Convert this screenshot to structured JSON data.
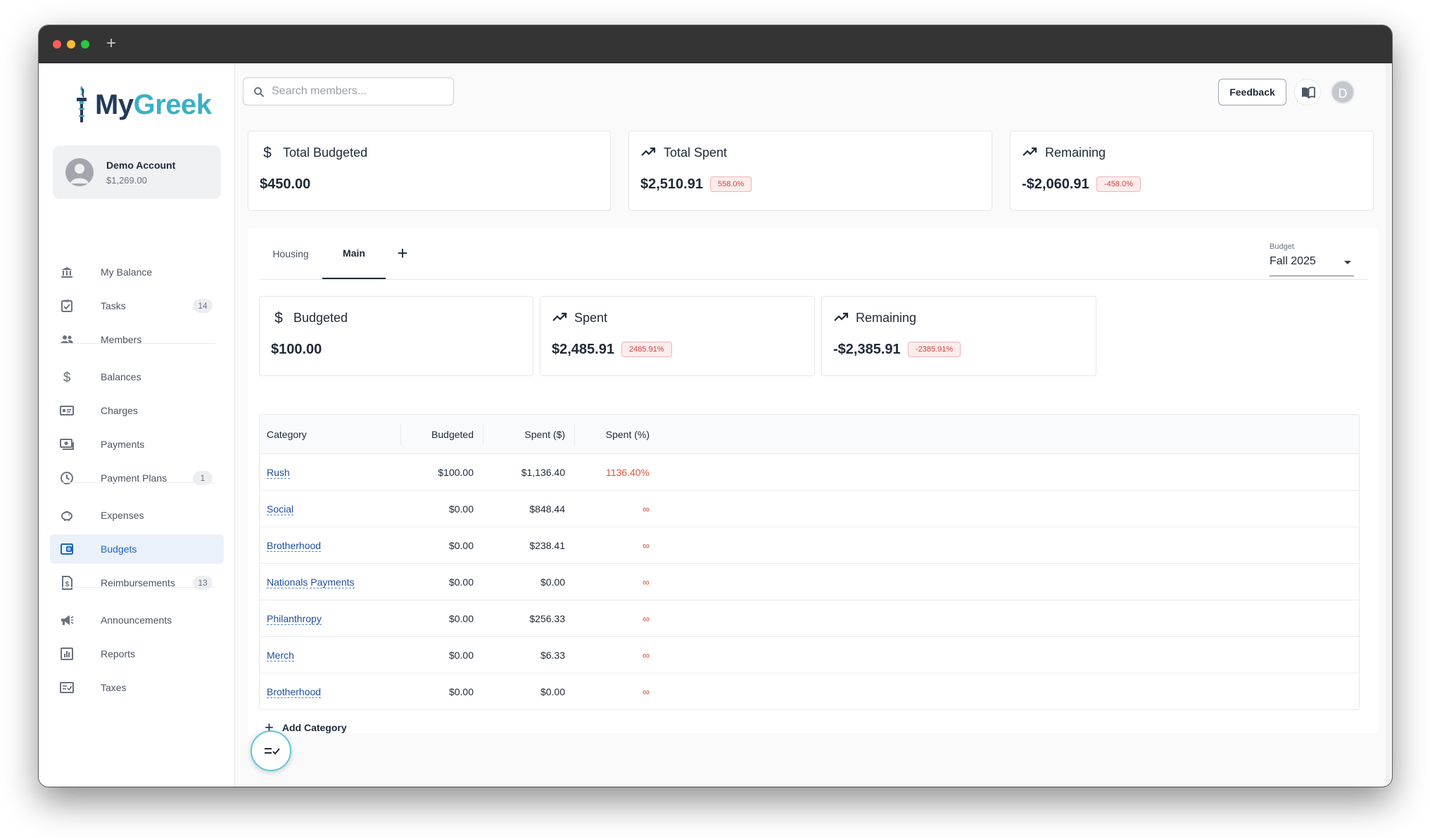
{
  "window": {
    "new_tab_symbol": "+"
  },
  "brand": {
    "part1": "My",
    "part2": "Greek"
  },
  "account": {
    "name": "Demo Account",
    "balance": "$1,269.00"
  },
  "sidebar": {
    "items": [
      {
        "label": "My Balance",
        "icon": "bank-icon",
        "count": null
      },
      {
        "label": "Tasks",
        "icon": "checklist-icon",
        "count": "14"
      },
      {
        "label": "Members",
        "icon": "people-icon",
        "count": null
      },
      {
        "label": "Balances",
        "icon": "dollar-icon",
        "count": null
      },
      {
        "label": "Charges",
        "icon": "charges-icon",
        "count": null
      },
      {
        "label": "Payments",
        "icon": "payments-icon",
        "count": null
      },
      {
        "label": "Payment Plans",
        "icon": "clock-icon",
        "count": "1"
      },
      {
        "label": "Expenses",
        "icon": "piggy-bank-icon",
        "count": null
      },
      {
        "label": "Budgets",
        "icon": "wallet-icon",
        "count": null,
        "active": true
      },
      {
        "label": "Reimbursements",
        "icon": "receipt-icon",
        "count": "13"
      },
      {
        "label": "Announcements",
        "icon": "megaphone-icon",
        "count": null
      },
      {
        "label": "Reports",
        "icon": "report-icon",
        "count": null
      },
      {
        "label": "Taxes",
        "icon": "taxes-icon",
        "count": null
      }
    ]
  },
  "header": {
    "search_placeholder": "Search members...",
    "feedback_label": "Feedback",
    "user_initial": "D"
  },
  "summary": {
    "total_budgeted": {
      "title": "Total Budgeted",
      "value": "$450.00"
    },
    "total_spent": {
      "title": "Total Spent",
      "value": "$2,510.91",
      "pct": "558.0%"
    },
    "remaining": {
      "title": "Remaining",
      "value": "-$2,060.91",
      "pct": "-458.0%"
    }
  },
  "tabs": [
    {
      "label": "Housing"
    },
    {
      "label": "Main",
      "active": true
    }
  ],
  "tab_add_symbol": "+",
  "budget_select": {
    "label": "Budget",
    "value": "Fall 2025"
  },
  "main_summary": {
    "budgeted": {
      "title": "Budgeted",
      "value": "$100.00"
    },
    "spent": {
      "title": "Spent",
      "value": "$2,485.91",
      "pct": "2485.91%"
    },
    "remaining": {
      "title": "Remaining",
      "value": "-$2,385.91",
      "pct": "-2385.91%"
    }
  },
  "table": {
    "headers": [
      "Category",
      "Budgeted",
      "Spent ($)",
      "Spent (%)"
    ],
    "rows": [
      {
        "category": "Rush",
        "budgeted": "$100.00",
        "spent": "$1,136.40",
        "pct": "1136.40%"
      },
      {
        "category": "Social",
        "budgeted": "$0.00",
        "spent": "$848.44",
        "pct": "∞"
      },
      {
        "category": "Brotherhood",
        "budgeted": "$0.00",
        "spent": "$238.41",
        "pct": "∞"
      },
      {
        "category": "Nationals Payments",
        "budgeted": "$0.00",
        "spent": "$0.00",
        "pct": "∞"
      },
      {
        "category": "Philanthropy",
        "budgeted": "$0.00",
        "spent": "$256.33",
        "pct": "∞"
      },
      {
        "category": "Merch",
        "budgeted": "$0.00",
        "spent": "$6.33",
        "pct": "∞"
      },
      {
        "category": "Brotherhood",
        "budgeted": "$0.00",
        "spent": "$0.00",
        "pct": "∞"
      }
    ]
  },
  "add_category": {
    "symbol": "+",
    "label": "Add Category"
  },
  "colors": {
    "accent": "#1e63c4",
    "brand_teal": "#3ab0c9",
    "brand_navy": "#243a5a",
    "negative": "#d14343"
  }
}
